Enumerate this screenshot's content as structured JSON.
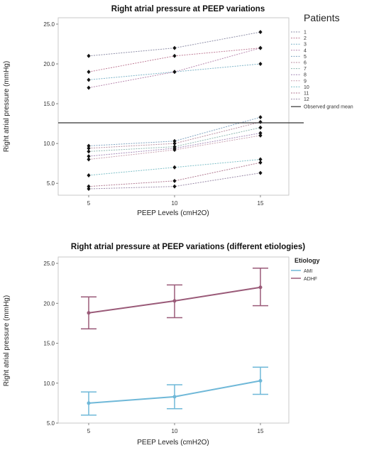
{
  "chart_data": [
    {
      "type": "line",
      "title": "Right atrial pressure at PEEP variations",
      "xlabel": "PEEP Levels (cmH2O)",
      "ylabel": "Right atrial pressure (mmHg)",
      "x": [
        5,
        10,
        15
      ],
      "x_tick_labels": [
        "5",
        "10",
        "15"
      ],
      "y_ticks": [
        5.0,
        10.0,
        15.0,
        20.0,
        25.0
      ],
      "y_tick_labels": [
        "5.0",
        "10.0",
        "15.0",
        "20.0",
        "25.0"
      ],
      "ylim": [
        3.5,
        25.8
      ],
      "legend_title": "Patients",
      "legend_position": "right",
      "grand_mean": 12.6,
      "grand_mean_label": "Observed grand mean",
      "series": [
        {
          "name": "1",
          "values": [
            21.0,
            22.0,
            24.0
          ],
          "color": "#8f8fa8"
        },
        {
          "name": "2",
          "values": [
            19.0,
            21.0,
            22.0
          ],
          "color": "#c07e98"
        },
        {
          "name": "3",
          "values": [
            18.0,
            19.0,
            20.0
          ],
          "color": "#7eb4c8"
        },
        {
          "name": "4",
          "values": [
            17.0,
            19.0,
            22.0
          ],
          "color": "#b98ab0"
        },
        {
          "name": "5",
          "values": [
            9.7,
            10.3,
            13.3
          ],
          "color": "#7fa3c0"
        },
        {
          "name": "6",
          "values": [
            9.4,
            10.0,
            12.7
          ],
          "color": "#b88fa0"
        },
        {
          "name": "7",
          "values": [
            9.0,
            9.6,
            12.0
          ],
          "color": "#8fb7b0"
        },
        {
          "name": "8",
          "values": [
            8.4,
            9.4,
            11.3
          ],
          "color": "#a58ab8"
        },
        {
          "name": "9",
          "values": [
            8.0,
            9.2,
            11.0
          ],
          "color": "#c8a0b0"
        },
        {
          "name": "10",
          "values": [
            6.0,
            7.0,
            8.0
          ],
          "color": "#7fc0c8"
        },
        {
          "name": "11",
          "values": [
            4.6,
            5.3,
            7.6
          ],
          "color": "#b07890"
        },
        {
          "name": "12",
          "values": [
            4.3,
            4.6,
            6.3
          ],
          "color": "#9a8aa8"
        }
      ]
    },
    {
      "type": "line",
      "title": "Right atrial pressure at PEEP variations (different etiologies)",
      "xlabel": "PEEP Levels (cmH2O)",
      "ylabel": "Right atrial pressure (mmHg)",
      "x": [
        5,
        10,
        15
      ],
      "x_tick_labels": [
        "5",
        "10",
        "15"
      ],
      "y_ticks": [
        5.0,
        10.0,
        15.0,
        20.0,
        25.0
      ],
      "y_tick_labels": [
        "5.0",
        "10.0",
        "15.0",
        "20.0",
        "25.0"
      ],
      "ylim": [
        5.0,
        25.8
      ],
      "legend_title": "Etiology",
      "legend_position": "top-right",
      "series": [
        {
          "name": "AMI",
          "values": [
            7.5,
            8.3,
            10.3
          ],
          "err_low": [
            6.0,
            6.8,
            8.6
          ],
          "err_high": [
            8.9,
            9.8,
            12.0
          ],
          "color": "#6fb8d8"
        },
        {
          "name": "ADHF",
          "values": [
            18.8,
            20.3,
            22.0
          ],
          "err_low": [
            16.8,
            18.2,
            19.7
          ],
          "err_high": [
            20.8,
            22.3,
            24.4
          ],
          "color": "#9a5a78"
        }
      ]
    }
  ]
}
